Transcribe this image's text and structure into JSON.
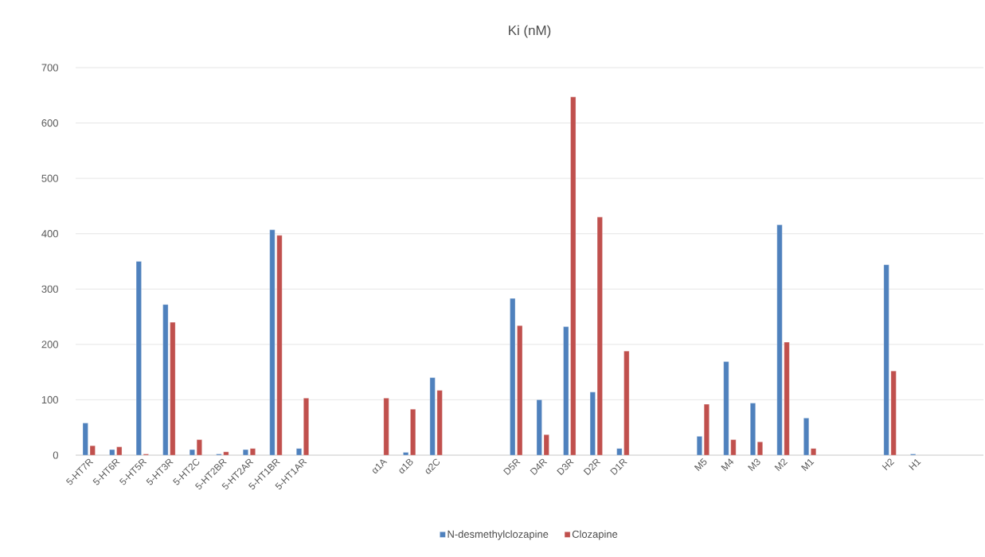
{
  "chart_data": {
    "type": "bar",
    "title": "Ki (nM)",
    "categories": [
      "5-HT7R",
      "5-HT6R",
      "5-HT5R",
      "5-HT3R",
      "5-HT2C",
      "5-HT2BR",
      "5-HT2AR",
      "5-HT1BR",
      "5-HT1AR",
      null,
      null,
      "α1A",
      "α1B",
      "α2C",
      null,
      null,
      "D5R",
      "D4R",
      "D3R",
      "D2R",
      "D1R",
      null,
      null,
      "M5",
      "M4",
      "M3",
      "M2",
      "M1",
      null,
      null,
      "H2",
      "H1",
      null,
      null
    ],
    "series": [
      {
        "name": "N-desmethylclozapine",
        "color": "#4f81bd",
        "values": [
          58,
          10,
          350,
          272,
          10,
          2,
          10,
          407,
          12,
          null,
          null,
          null,
          5,
          140,
          null,
          null,
          283,
          100,
          232,
          114,
          12,
          null,
          null,
          34,
          169,
          94,
          416,
          67,
          null,
          null,
          344,
          2,
          null,
          null
        ]
      },
      {
        "name": "Clozapine",
        "color": "#c0504d",
        "values": [
          17,
          15,
          2,
          240,
          28,
          6,
          12,
          397,
          103,
          null,
          null,
          103,
          83,
          117,
          null,
          null,
          234,
          37,
          647,
          430,
          188,
          null,
          null,
          92,
          28,
          24,
          204,
          12,
          null,
          null,
          152,
          null,
          null,
          null
        ]
      }
    ],
    "ylim": [
      0,
      700
    ],
    "yticks": [
      0,
      100,
      200,
      300,
      400,
      500,
      600,
      700
    ],
    "grid": "y",
    "legend": "bottom"
  }
}
